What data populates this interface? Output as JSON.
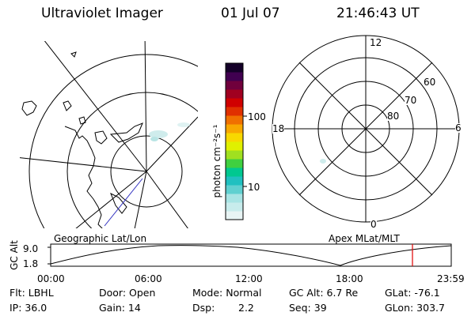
{
  "header": {
    "title": "Ultraviolet Imager",
    "date": "01 Jul 07",
    "time": "21:46:43 UT"
  },
  "colorbar": {
    "unit_label": "photon cm⁻²s⁻¹",
    "tick_100": "100",
    "tick_10": "10",
    "colors": [
      "#e8f4f4",
      "#c8ecec",
      "#a8e4e4",
      "#60d0d0",
      "#20c0c0",
      "#00c890",
      "#40d040",
      "#a0e020",
      "#e0f000",
      "#f8d800",
      "#f8a800",
      "#f07000",
      "#e03000",
      "#d00000",
      "#a00020",
      "#70003c",
      "#400050",
      "#140028"
    ]
  },
  "polar_plot": {
    "label_12": "12",
    "label_6": "6",
    "label_0": "0",
    "label_18": "18",
    "label_60": "60",
    "label_70": "70",
    "label_80": "80"
  },
  "strip": {
    "axis_label": "GC Alt",
    "y_max": "9.0",
    "y_min": "1.8",
    "left_title": "Geographic Lat/Lon",
    "right_title": "Apex MLat/MLT",
    "time_ticks": [
      "00:00",
      "06:00",
      "12:00",
      "18:00",
      "23:59"
    ],
    "marker_color": "#e00000"
  },
  "status": {
    "filter": "Flt: LBHL",
    "door": "Door: Open",
    "mode": "Mode: Normal",
    "gc_alt": "GC Alt: 6.7 Re",
    "glat": "GLat: -76.1",
    "ip": "IP: 36.0",
    "gain": "Gain: 14",
    "dsp_label": "Dsp:",
    "dsp_value": "2.2",
    "seq": "Seq: 39",
    "glon": "GLon: 303.7"
  }
}
